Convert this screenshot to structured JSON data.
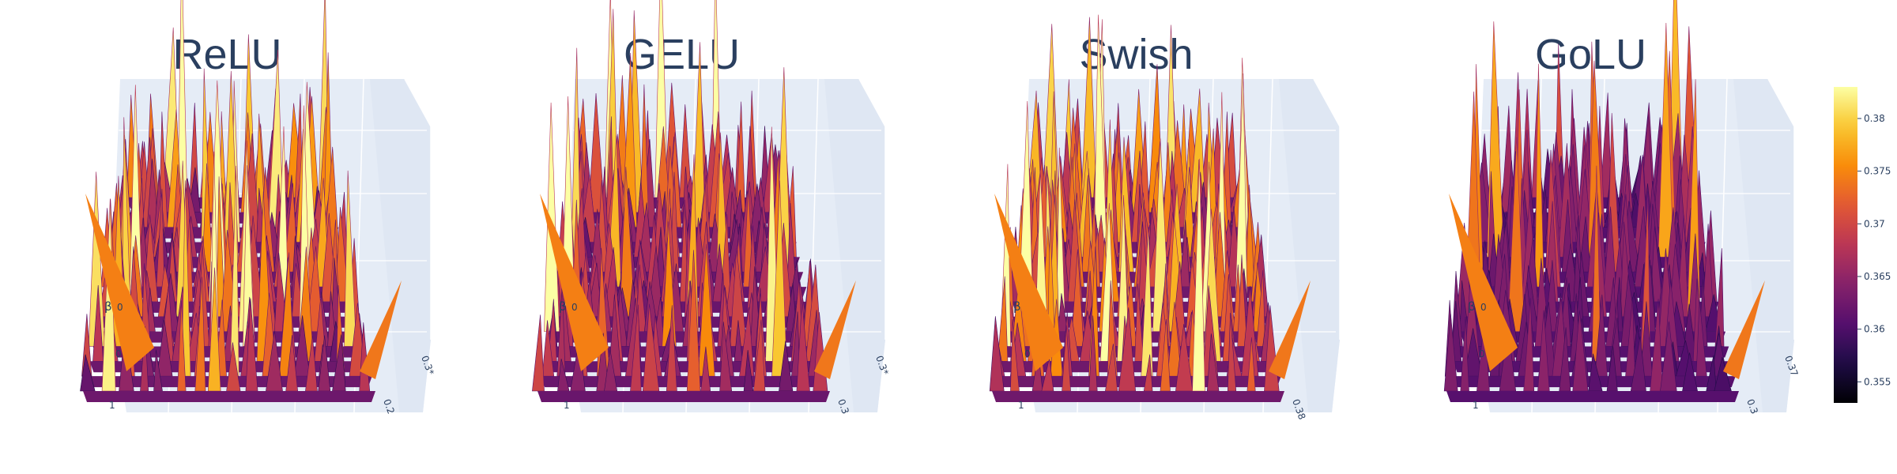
{
  "chart_data": [
    {
      "type": "surface",
      "title": "ReLU",
      "axis_label": "β",
      "tick_labels": {
        "left_upper": "0",
        "left_lower": "0",
        "left_bottom": "1",
        "right_upper": "0.3*",
        "right_lower": "0.2"
      },
      "noise_level": 0.52,
      "peak_bias": 0.25
    },
    {
      "type": "surface",
      "title": "GELU",
      "axis_label": "β",
      "tick_labels": {
        "left_upper": "0",
        "left_lower": "",
        "left_bottom": "1",
        "right_upper": "0.3*",
        "right_lower": "0.3"
      },
      "noise_level": 0.48,
      "peak_bias": 0.18
    },
    {
      "type": "surface",
      "title": "Swish",
      "axis_label": "β",
      "tick_labels": {
        "left_upper": "",
        "left_lower": "0",
        "left_bottom": "1",
        "right_upper": "",
        "right_lower": "0.38"
      },
      "noise_level": 0.55,
      "peak_bias": 0.28
    },
    {
      "type": "surface",
      "title": "GoLU",
      "axis_label": "β",
      "tick_labels": {
        "left_upper": "0",
        "left_lower": "0",
        "left_bottom": "1",
        "right_upper": "0.37",
        "right_lower": "0.3"
      },
      "noise_level": 0.3,
      "peak_bias": 0.05
    }
  ],
  "colorbar": {
    "colorscale": "inferno",
    "min": 0.353,
    "max": 0.383,
    "ticks": [
      "0.38",
      "0.375",
      "0.37",
      "0.365",
      "0.36",
      "0.355"
    ],
    "tick_values": [
      0.38,
      0.375,
      0.37,
      0.365,
      0.36,
      0.355
    ]
  },
  "colors": {
    "scene_bg": "#e5ecf6",
    "grid": "#ffffff",
    "text": "#2a3f5f"
  }
}
